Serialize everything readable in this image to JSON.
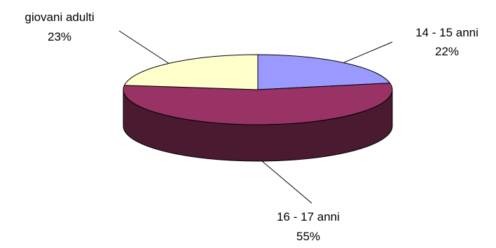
{
  "chart_data": {
    "type": "pie",
    "style": "3d",
    "slices": [
      {
        "label": "14 - 15 anni",
        "value": 22,
        "value_label": "22%",
        "color": "#9999ff",
        "side_color": "#5a5a99"
      },
      {
        "label": "16 - 17 anni",
        "value": 55,
        "value_label": "55%",
        "color": "#993366",
        "side_color": "#4a1a30"
      },
      {
        "label": "giovani adulti",
        "value": 23,
        "value_label": "23%",
        "color": "#ffffcc",
        "side_color": "#b3b38f"
      }
    ],
    "legend": "none",
    "data_labels": "outside with leader lines"
  }
}
